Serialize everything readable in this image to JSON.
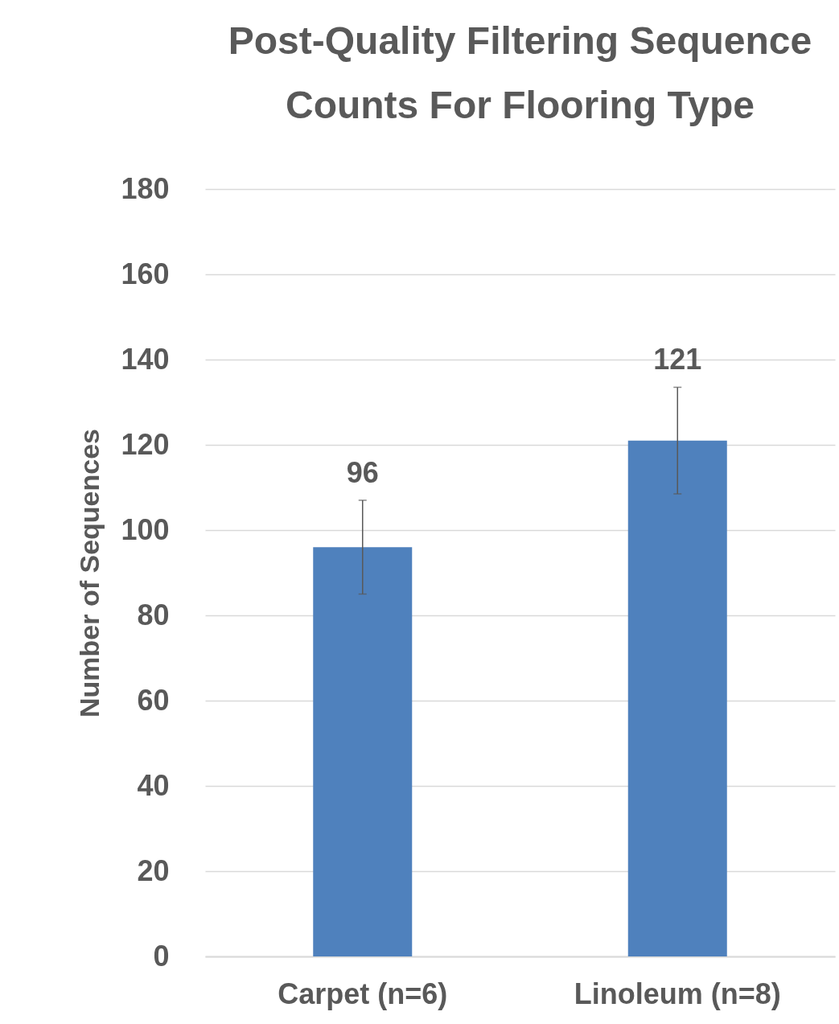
{
  "chart_data": {
    "type": "bar",
    "title": "Post-Quality Filtering Sequence Counts For Flooring Type",
    "ylabel": "Number of Sequences",
    "categories": [
      "Carpet (n=6)",
      "Linoleum (n=8)"
    ],
    "values": [
      96,
      121
    ],
    "errors": [
      11,
      12.5
    ],
    "color": "#4f81bd",
    "data_labels": true,
    "ylim": [
      0,
      180
    ],
    "yticks": [
      0,
      20,
      40,
      60,
      80,
      100,
      120,
      140,
      160,
      180
    ],
    "grid": "y"
  }
}
